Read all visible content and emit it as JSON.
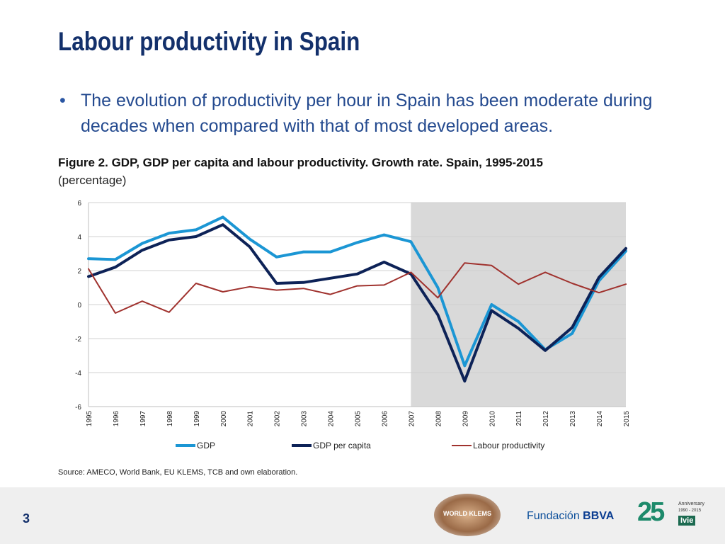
{
  "slide": {
    "title": "Labour productivity in Spain",
    "bullet_symbol": "•",
    "bullet_text": "The evolution of productivity per hour in Spain has been moderate during decades when compared with that of most developed areas.",
    "page_number": "3"
  },
  "figure": {
    "title": "Figure 2. GDP, GDP per capita and labour productivity. Growth rate. Spain, 1995-2015",
    "subtitle": "(percentage)",
    "source": "Source: AMECO, World Bank, EU KLEMS, TCB and own elaboration."
  },
  "logos": {
    "klems_text": "WORLD KLEMS",
    "fundacion": "Fundación",
    "bbva": "BBVA",
    "ivie_number": "25",
    "ivie_anniversary": "Anniversary",
    "ivie_years": "1990 - 2015",
    "ivie_name": "Ivie"
  },
  "chart_data": {
    "type": "line",
    "title": "Figure 2. GDP, GDP per capita and labour productivity. Growth rate. Spain, 1995-2015",
    "ylabel": "percentage",
    "ylim": [
      -6,
      6
    ],
    "yticks": [
      "6",
      "4",
      "2",
      "0",
      "-2",
      "-4",
      "-6"
    ],
    "categories": [
      "1995",
      "1996",
      "1997",
      "1998",
      "1999",
      "2000",
      "2001",
      "2002",
      "2003",
      "2004",
      "2005",
      "2006",
      "2007",
      "2008",
      "2009",
      "2010",
      "2011",
      "2012",
      "2013",
      "2014",
      "2015"
    ],
    "shaded_range": [
      "2007",
      "2015"
    ],
    "legend_position": "bottom",
    "series": [
      {
        "name": "GDP",
        "color": "#1b96d4",
        "stroke": "thick",
        "values": [
          2.7,
          2.65,
          3.6,
          4.2,
          4.4,
          5.15,
          3.85,
          2.8,
          3.1,
          3.1,
          3.65,
          4.1,
          3.7,
          1.0,
          -3.6,
          0.0,
          -1.0,
          -2.65,
          -1.7,
          1.4,
          3.15
        ]
      },
      {
        "name": "GDP per capita",
        "color": "#0d2257",
        "stroke": "thick",
        "values": [
          1.65,
          2.2,
          3.2,
          3.8,
          4.0,
          4.7,
          3.4,
          1.25,
          1.3,
          1.55,
          1.8,
          2.5,
          1.8,
          -0.6,
          -4.5,
          -0.35,
          -1.4,
          -2.7,
          -1.35,
          1.6,
          3.3
        ]
      },
      {
        "name": "Labour productivity",
        "color": "#a0322e",
        "stroke": "thin",
        "values": [
          2.1,
          -0.5,
          0.2,
          -0.45,
          1.25,
          0.75,
          1.05,
          0.85,
          0.95,
          0.6,
          1.1,
          1.15,
          1.9,
          0.4,
          2.45,
          2.3,
          1.2,
          1.9,
          1.25,
          0.7,
          1.2
        ]
      }
    ]
  }
}
